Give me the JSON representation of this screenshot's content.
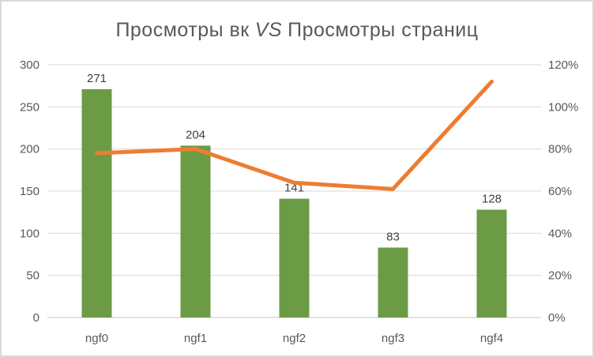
{
  "title": {
    "prefix": "Просмотры вк",
    "vs": "VS",
    "suffix": "Просмотры страниц"
  },
  "chart_data": {
    "type": "combo-bar-line",
    "title": "Просмотры вк VS Просмотры страниц",
    "categories": [
      "ngf0",
      "ngf1",
      "ngf2",
      "ngf3",
      "ngf4"
    ],
    "series": [
      {
        "type": "bar",
        "axis": "left",
        "values": [
          271,
          204,
          141,
          83,
          128
        ],
        "data_labels": [
          "271",
          "204",
          "141",
          "83",
          "128"
        ],
        "color": "#6c9b45"
      },
      {
        "type": "line",
        "axis": "right",
        "values": [
          0.78,
          0.8,
          0.64,
          0.61,
          1.12
        ],
        "color": "#ed7d31"
      }
    ],
    "left_axis": {
      "min": 0,
      "max": 300,
      "tick_step": 50,
      "tick_labels": [
        "300",
        "250",
        "200",
        "150",
        "100",
        "50",
        "0"
      ]
    },
    "right_axis": {
      "min": 0,
      "max": 1.2,
      "tick_step": 0.2,
      "tick_labels": [
        "120%",
        "100%",
        "80%",
        "60%",
        "40%",
        "20%",
        "0%"
      ]
    },
    "grid": true,
    "legend_position": "none"
  },
  "colors": {
    "bar": "#6c9b45",
    "line": "#ed7d31",
    "gridline": "#d9d9d9",
    "axis_line": "#c6c6c6",
    "tick_text": "#595959",
    "data_label_text": "#404040",
    "title_text": "#595959",
    "frame_border": "#d9d9d9"
  }
}
